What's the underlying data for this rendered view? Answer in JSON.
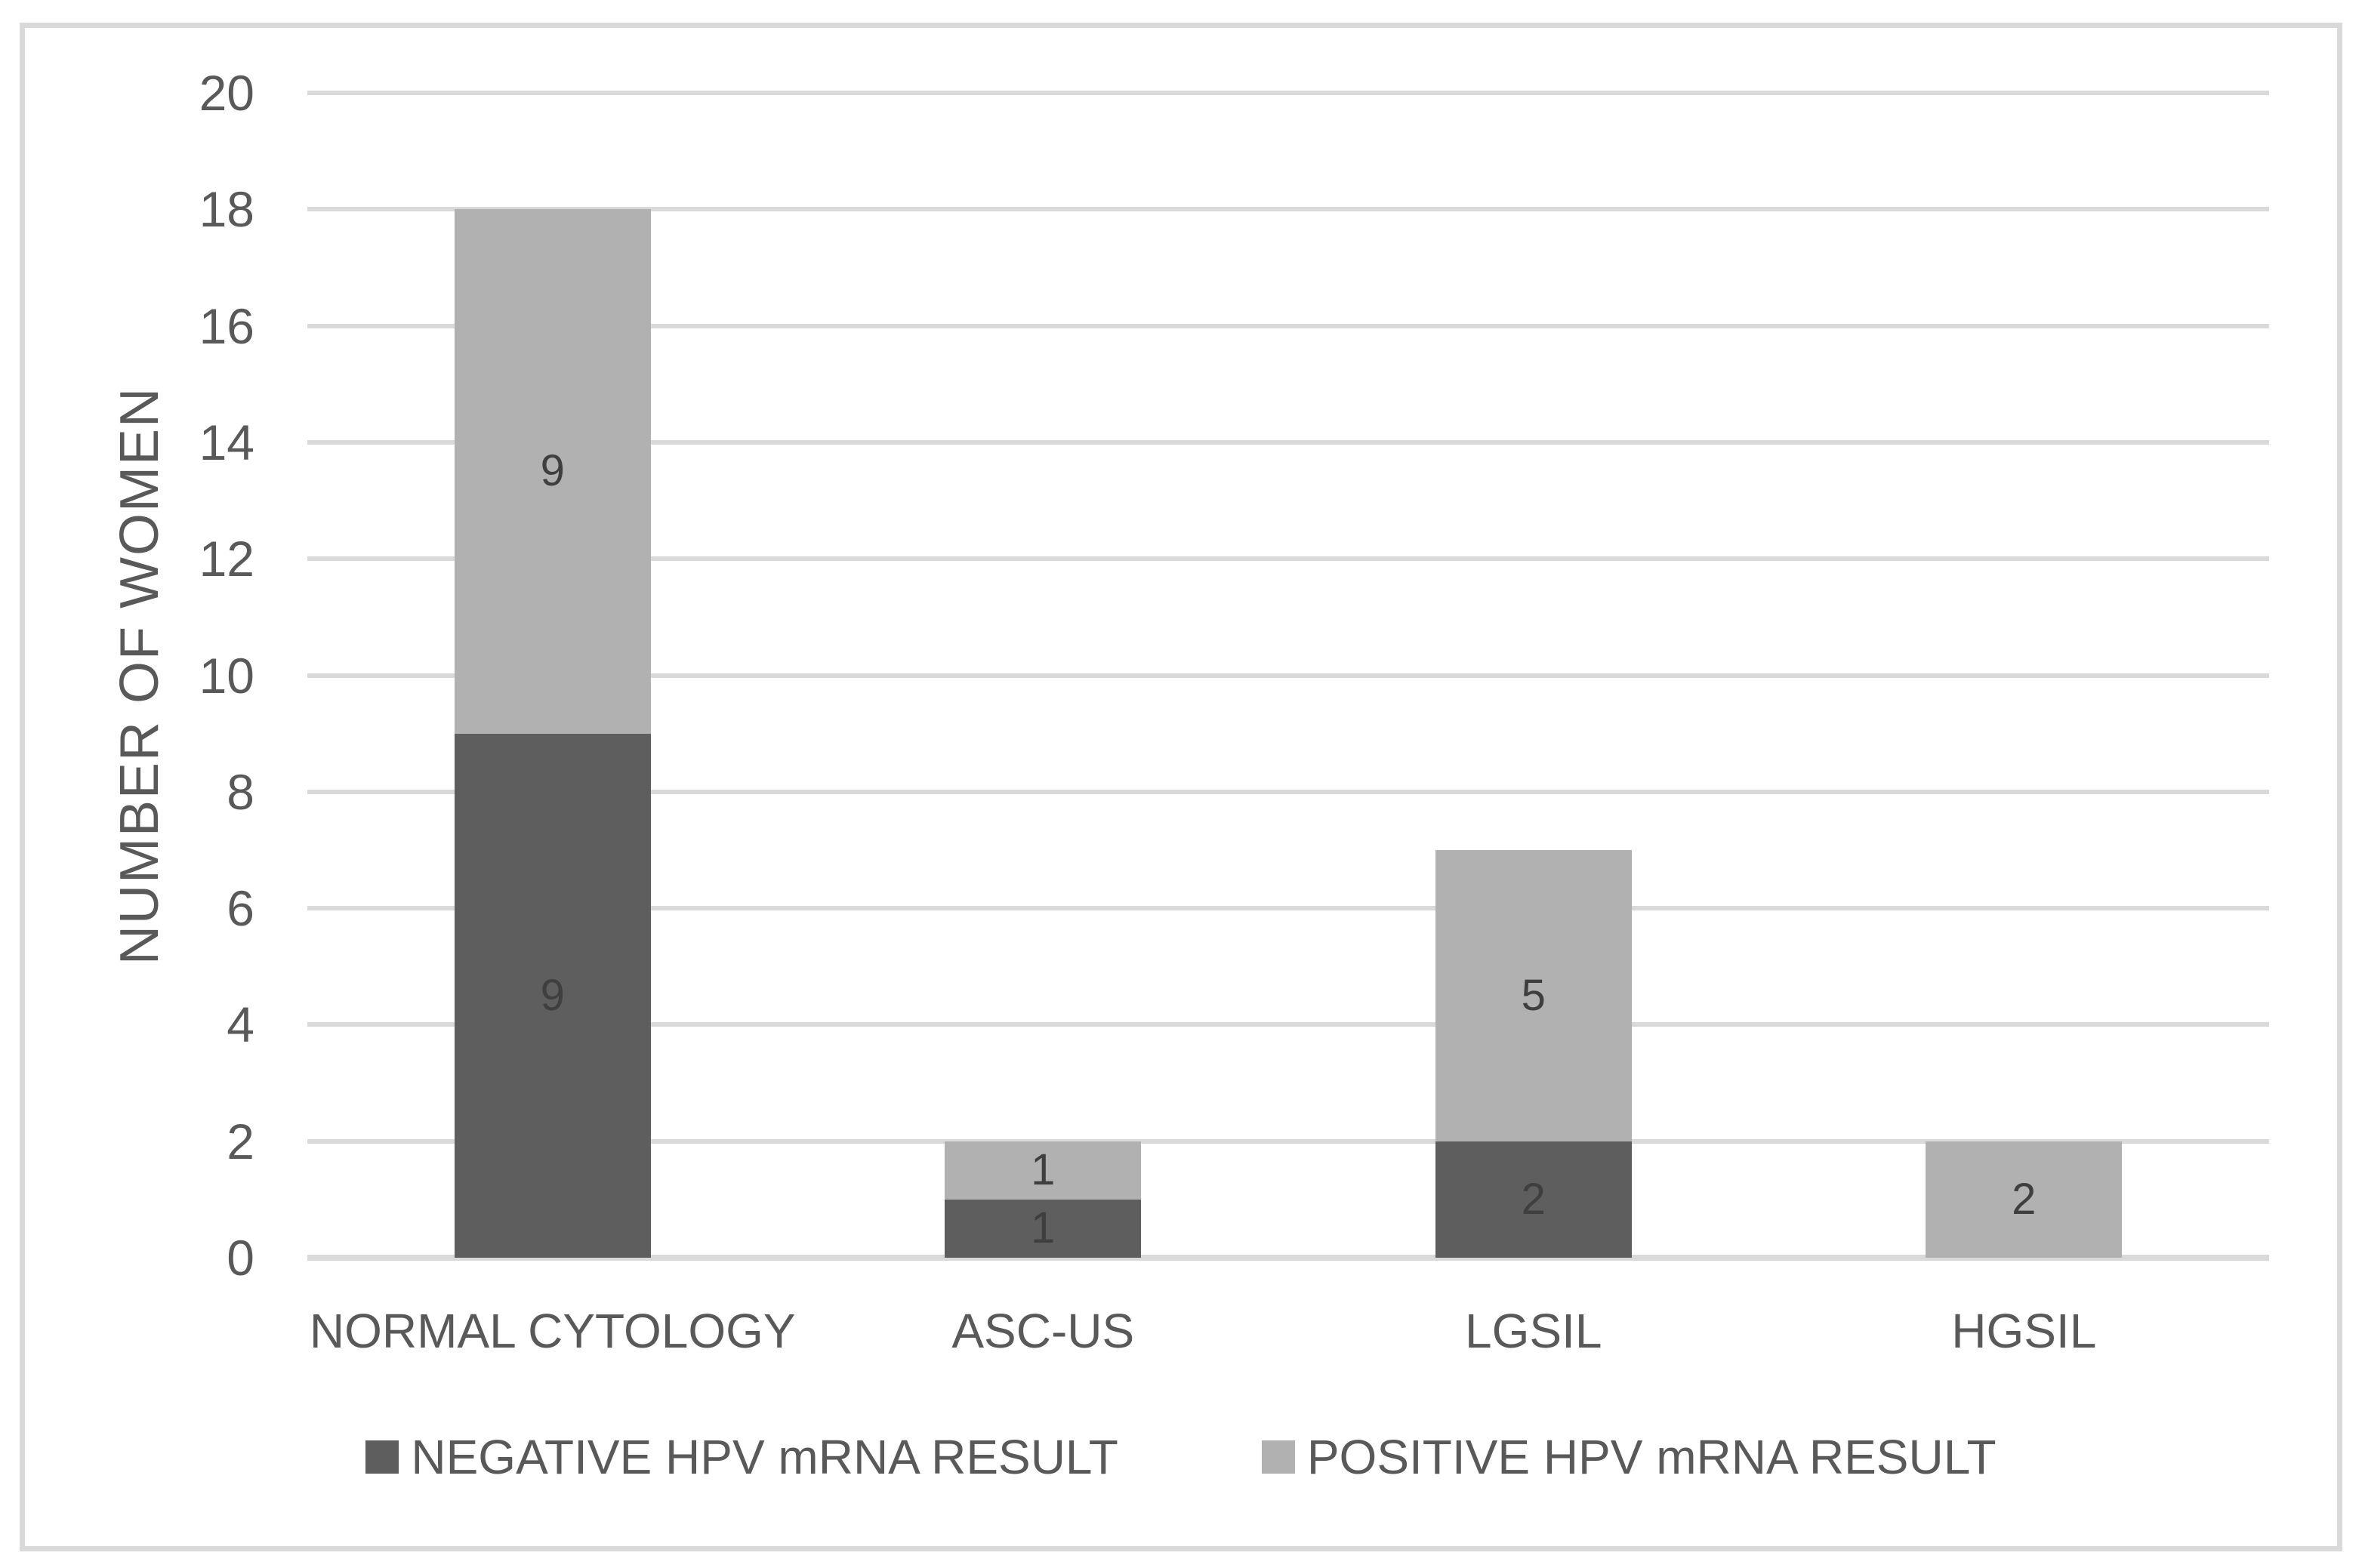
{
  "figure": {
    "background": "#ffffff",
    "border_color": "#d9d9d9"
  },
  "chart_data": {
    "type": "bar",
    "subtype": "stacked-column",
    "title": "",
    "xlabel": "",
    "ylabel": "NUMBER OF WOMEN",
    "categories": [
      "NORMAL CYTOLOGY",
      "ASC-US",
      "LGSIL",
      "HGSIL"
    ],
    "series": [
      {
        "name": "NEGATIVE HPV mRNA RESULT",
        "color": "#5e5e5e",
        "values": [
          9,
          1,
          2,
          0
        ]
      },
      {
        "name": "POSITIVE HPV mRNA RESULT",
        "color": "#b1b1b1",
        "values": [
          9,
          1,
          5,
          2
        ]
      }
    ],
    "data_labels_shown": true,
    "data_label_color": "#3f3f3f",
    "ylim": [
      0,
      20
    ],
    "ytick_step": 2,
    "yticks": [
      0,
      2,
      4,
      6,
      8,
      10,
      12,
      14,
      16,
      18,
      20
    ],
    "grid": true,
    "gridline_color": "#d9d9d9",
    "axis_text_color": "#595959",
    "legend_position": "bottom"
  }
}
